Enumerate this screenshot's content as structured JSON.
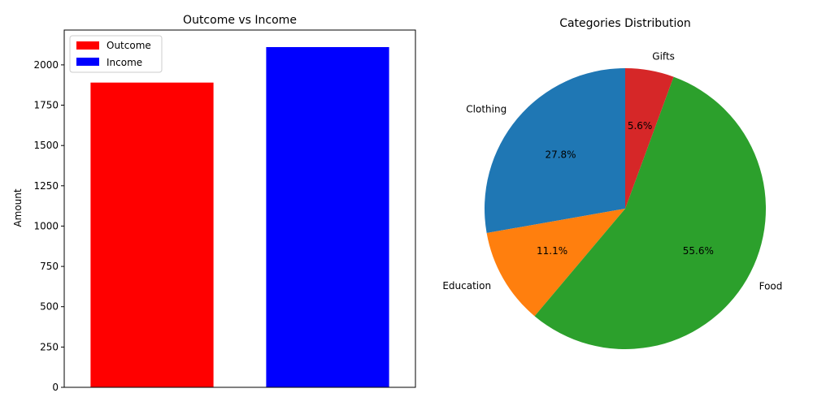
{
  "chart_data": [
    {
      "type": "bar",
      "title": "Outcome vs Income",
      "xlabel": "",
      "ylabel": "Amount",
      "categories": [
        "Outcome",
        "Income"
      ],
      "values": [
        1890,
        2110
      ],
      "colors": [
        "#ff0000",
        "#0000ff"
      ],
      "ylim": [
        0,
        2216
      ],
      "yticks": [
        0,
        250,
        500,
        750,
        1000,
        1250,
        1500,
        1750,
        2000
      ],
      "grid": false,
      "legend": {
        "position": "top-left",
        "entries": [
          "Outcome",
          "Income"
        ]
      }
    },
    {
      "type": "pie",
      "title": "Categories Distribution",
      "start_angle_deg": 90,
      "direction": "counterclockwise",
      "slices": [
        {
          "label": "Clothing",
          "value": 27.8,
          "pct": "27.8%",
          "color": "#1f77b4"
        },
        {
          "label": "Education",
          "value": 11.1,
          "pct": "11.1%",
          "color": "#ff7f0e"
        },
        {
          "label": "Food",
          "value": 55.6,
          "pct": "55.6%",
          "color": "#2ca02c"
        },
        {
          "label": "Gifts",
          "value": 5.6,
          "pct": "5.6%",
          "color": "#d62728"
        }
      ]
    }
  ]
}
